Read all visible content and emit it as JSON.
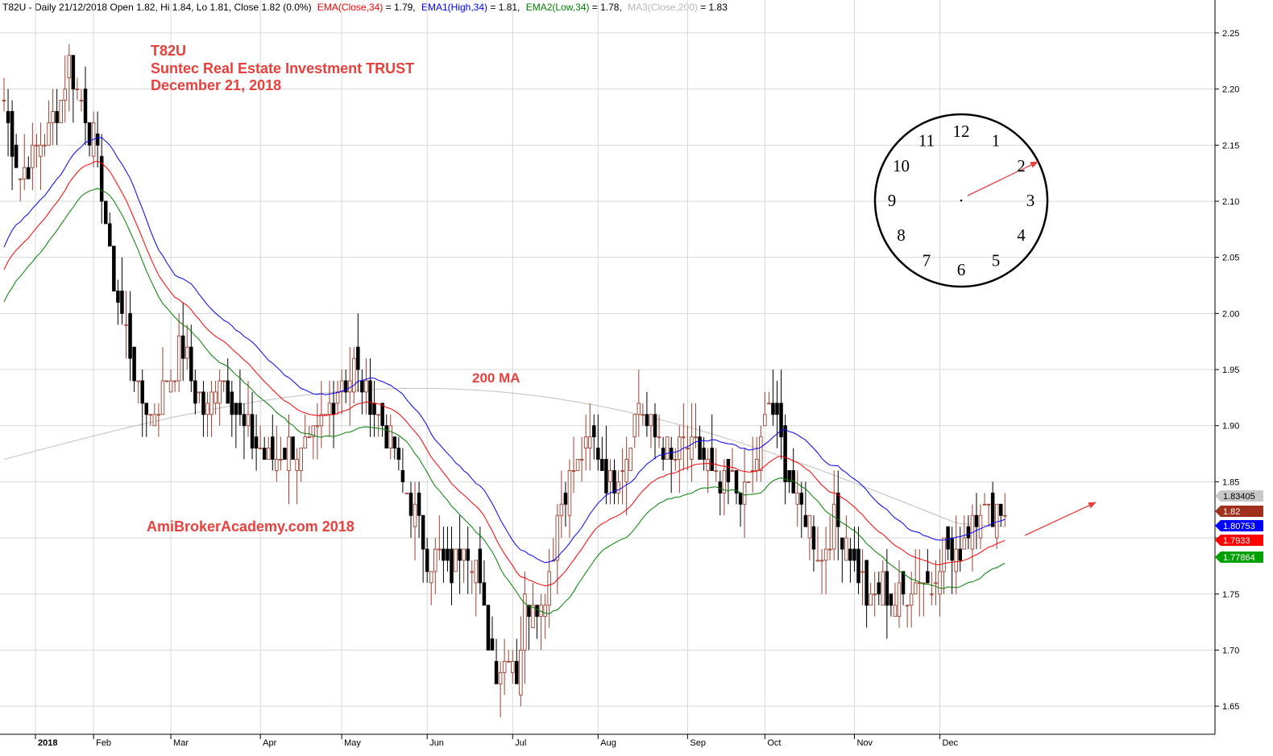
{
  "header": {
    "prefix": "T82U - Daily 21/12/2018 Open 1.82, Hi 1.84, Lo 1.81, Close 1.82 (0.0%)",
    "ema_label": "EMA(Close,34)",
    "ema_value": " = 1.79,",
    "ema1_label": "EMA1(High,34)",
    "ema1_value": " = 1.81,",
    "ema2_label": "EMA2(Low,34)",
    "ema2_value": " = 1.78,",
    "ma3_label": "MA3(Close,200)",
    "ma3_value": " = 1.83"
  },
  "annotations": {
    "symbol": "T82U",
    "name": "Suntec Real Estate Investment TRUST",
    "date": "December 21, 2018",
    "ma_label": "200 MA",
    "watermark": "AmiBrokerAcademy.com  2018"
  },
  "clock": {
    "numbers": [
      "12",
      "1",
      "2",
      "3",
      "4",
      "5",
      "6",
      "7",
      "8",
      "9",
      "10",
      "11"
    ]
  },
  "colors": {
    "ema_close": "#ff0000",
    "ema_high": "#0000ff",
    "ema_low": "#008000",
    "ma200": "#c0c0c0",
    "annotation": "#e8403c",
    "candle_up": "#a04030",
    "candle_down": "#000000",
    "grid": "#d8d8d8"
  },
  "chart_data": {
    "type": "candlestick",
    "symbol": "T82U",
    "ylim": [
      1.625,
      2.265
    ],
    "yticks": [
      "2.25",
      "2.20",
      "2.15",
      "2.10",
      "2.05",
      "2.00",
      "1.95",
      "1.90",
      "1.85",
      "1.80",
      "1.75",
      "1.70",
      "1.65"
    ],
    "months": [
      "2018",
      "Feb",
      "Mar",
      "Apr",
      "May",
      "Jun",
      "Jul",
      "Aug",
      "Sep",
      "Oct",
      "Nov",
      "Dec"
    ],
    "month_trading_day": [
      0,
      22,
      41,
      63,
      83,
      104,
      125,
      146,
      168,
      187,
      209,
      230
    ],
    "bars": 247,
    "close_anchors": [
      [
        0,
        2.19
      ],
      [
        4,
        2.12
      ],
      [
        9,
        2.15
      ],
      [
        13,
        2.18
      ],
      [
        16,
        2.22
      ],
      [
        19,
        2.19
      ],
      [
        23,
        2.14
      ],
      [
        26,
        2.05
      ],
      [
        30,
        1.98
      ],
      [
        33,
        1.93
      ],
      [
        36,
        1.91
      ],
      [
        40,
        1.94
      ],
      [
        44,
        1.97
      ],
      [
        47,
        1.93
      ],
      [
        50,
        1.91
      ],
      [
        53,
        1.95
      ],
      [
        56,
        1.92
      ],
      [
        59,
        1.9
      ],
      [
        63,
        1.88
      ],
      [
        66,
        1.87
      ],
      [
        70,
        1.88
      ],
      [
        73,
        1.87
      ],
      [
        77,
        1.89
      ],
      [
        80,
        1.92
      ],
      [
        83,
        1.94
      ],
      [
        86,
        1.95
      ],
      [
        89,
        1.93
      ],
      [
        92,
        1.91
      ],
      [
        95,
        1.89
      ],
      [
        98,
        1.85
      ],
      [
        101,
        1.82
      ],
      [
        104,
        1.78
      ],
      [
        107,
        1.78
      ],
      [
        110,
        1.77
      ],
      [
        113,
        1.8
      ],
      [
        116,
        1.78
      ],
      [
        118,
        1.73
      ],
      [
        121,
        1.68
      ],
      [
        124,
        1.7
      ],
      [
        126,
        1.68
      ],
      [
        128,
        1.74
      ],
      [
        130,
        1.75
      ],
      [
        132,
        1.74
      ],
      [
        134,
        1.77
      ],
      [
        136,
        1.82
      ],
      [
        139,
        1.85
      ],
      [
        142,
        1.87
      ],
      [
        145,
        1.89
      ],
      [
        147,
        1.86
      ],
      [
        150,
        1.85
      ],
      [
        153,
        1.88
      ],
      [
        156,
        1.92
      ],
      [
        158,
        1.9
      ],
      [
        161,
        1.89
      ],
      [
        164,
        1.87
      ],
      [
        167,
        1.88
      ],
      [
        170,
        1.88
      ],
      [
        173,
        1.86
      ],
      [
        176,
        1.84
      ],
      [
        179,
        1.85
      ],
      [
        182,
        1.84
      ],
      [
        185,
        1.87
      ],
      [
        188,
        1.92
      ],
      [
        190,
        1.9
      ],
      [
        192,
        1.86
      ],
      [
        195,
        1.83
      ],
      [
        198,
        1.81
      ],
      [
        201,
        1.78
      ],
      [
        204,
        1.82
      ],
      [
        207,
        1.8
      ],
      [
        210,
        1.77
      ],
      [
        213,
        1.74
      ],
      [
        216,
        1.76
      ],
      [
        219,
        1.74
      ],
      [
        222,
        1.75
      ],
      [
        225,
        1.77
      ],
      [
        228,
        1.76
      ],
      [
        231,
        1.79
      ],
      [
        234,
        1.78
      ],
      [
        236,
        1.8
      ],
      [
        238,
        1.82
      ],
      [
        240,
        1.83
      ],
      [
        242,
        1.82
      ],
      [
        244,
        1.83
      ],
      [
        246,
        1.82
      ]
    ],
    "last_values": {
      "ma200": "1.83405",
      "close": "1.82",
      "ema_high": "1.80753",
      "ema_close": "1.7933",
      "ema_low": "1.77864"
    },
    "grid": true
  }
}
